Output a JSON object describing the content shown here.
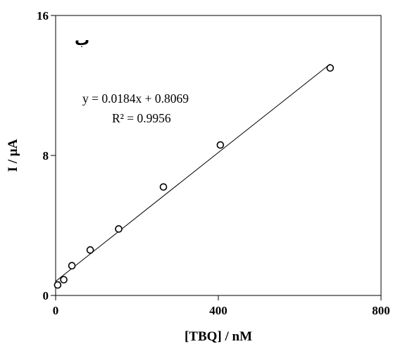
{
  "chart_data": {
    "type": "scatter",
    "title": "",
    "panel_label": "ب",
    "xlabel": "[TBQ] / nM",
    "ylabel": "I / μA",
    "xlim": [
      0,
      800
    ],
    "ylim": [
      0,
      16
    ],
    "xticks": [
      0,
      400,
      800
    ],
    "yticks": [
      0,
      8,
      16
    ],
    "grid": false,
    "series": [
      {
        "marker": "open-circle",
        "x": [
          5,
          20,
          40,
          85,
          155,
          265,
          405,
          675
        ],
        "y": [
          0.6,
          0.9,
          1.7,
          2.6,
          3.8,
          6.2,
          8.6,
          13.0
        ]
      }
    ],
    "trendline": {
      "type": "linear",
      "slope": 0.0184,
      "intercept": 0.8069,
      "x_range": [
        0,
        675
      ]
    },
    "annotations": {
      "equation": "y = 0.0184x + 0.8069",
      "r_squared": "R² = 0.9956"
    }
  }
}
